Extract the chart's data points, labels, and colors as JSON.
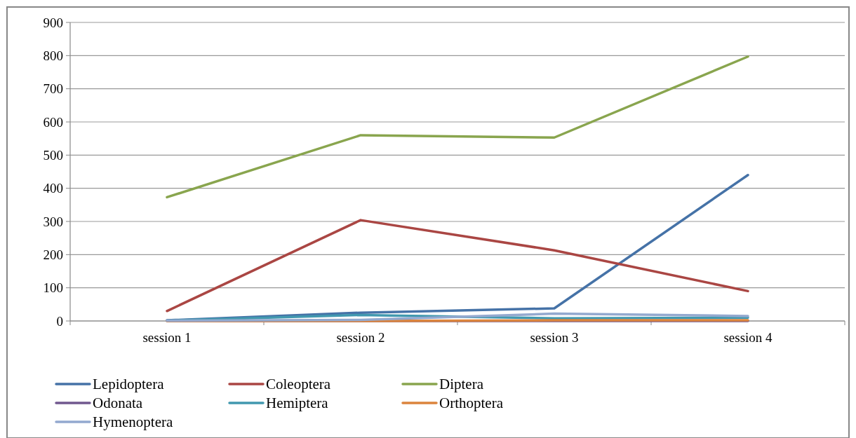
{
  "chart_data": {
    "type": "line",
    "categories": [
      "session 1",
      "session 2",
      "session 3",
      "session 4"
    ],
    "series": [
      {
        "name": "Lepidoptera",
        "color": "#4572a7",
        "values": [
          2,
          25,
          38,
          440
        ]
      },
      {
        "name": "Coleoptera",
        "color": "#aa4643",
        "values": [
          30,
          304,
          213,
          90
        ]
      },
      {
        "name": "Diptera",
        "color": "#89a54e",
        "values": [
          373,
          560,
          553,
          797
        ]
      },
      {
        "name": "Odonata",
        "color": "#71588f",
        "values": [
          0,
          0,
          0,
          0
        ]
      },
      {
        "name": "Hemiptera",
        "color": "#4198af",
        "values": [
          1,
          18,
          8,
          10
        ]
      },
      {
        "name": "Orthoptera",
        "color": "#db843d",
        "values": [
          0,
          0,
          2,
          2
        ]
      },
      {
        "name": "Hymenoptera",
        "color": "#93a9cf",
        "values": [
          1,
          3,
          22,
          15
        ]
      }
    ],
    "ylim": [
      0,
      900
    ],
    "yticks": [
      0,
      100,
      200,
      300,
      400,
      500,
      600,
      700,
      800,
      900
    ],
    "grid": "y",
    "legend": "bottom",
    "marker": "none",
    "line_style": "solid"
  }
}
